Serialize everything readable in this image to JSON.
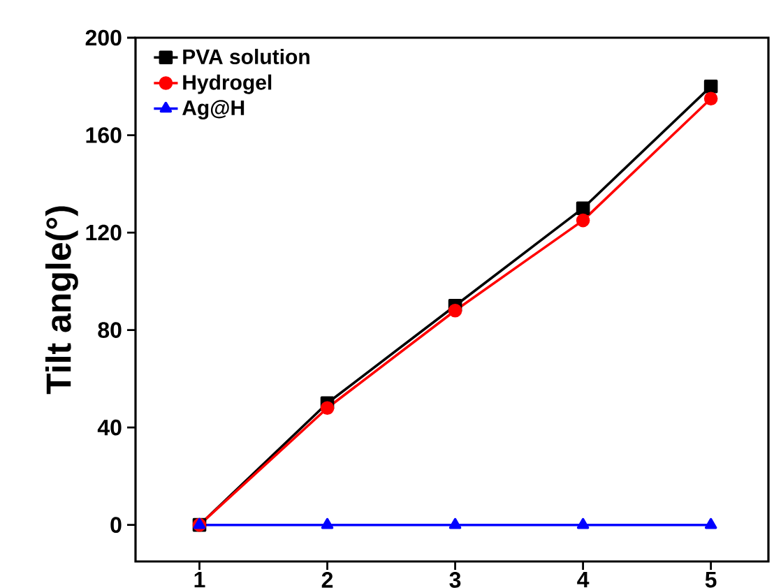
{
  "chart_data": {
    "type": "line",
    "ylabel": "Tilt angle(°)",
    "x": [
      1,
      2,
      3,
      4,
      5
    ],
    "xlim": [
      0.5,
      5.45
    ],
    "xticks": [
      1,
      2,
      3,
      4,
      5
    ],
    "ylim": [
      -15,
      200
    ],
    "yticks": [
      0,
      40,
      80,
      120,
      160,
      200
    ],
    "legend": "top left",
    "grid": false,
    "line_style": "solid",
    "series": [
      {
        "name": "PVA solution",
        "color": "#000000",
        "marker": "square",
        "values": [
          0,
          50,
          90,
          130,
          180
        ]
      },
      {
        "name": "Hydrogel",
        "color": "#ff0000",
        "marker": "circle",
        "values": [
          0,
          48,
          88,
          125,
          175
        ]
      },
      {
        "name": "Ag@H",
        "color": "#0000ff",
        "marker": "triangle",
        "values": [
          0,
          0,
          0,
          0,
          0
        ]
      }
    ]
  }
}
